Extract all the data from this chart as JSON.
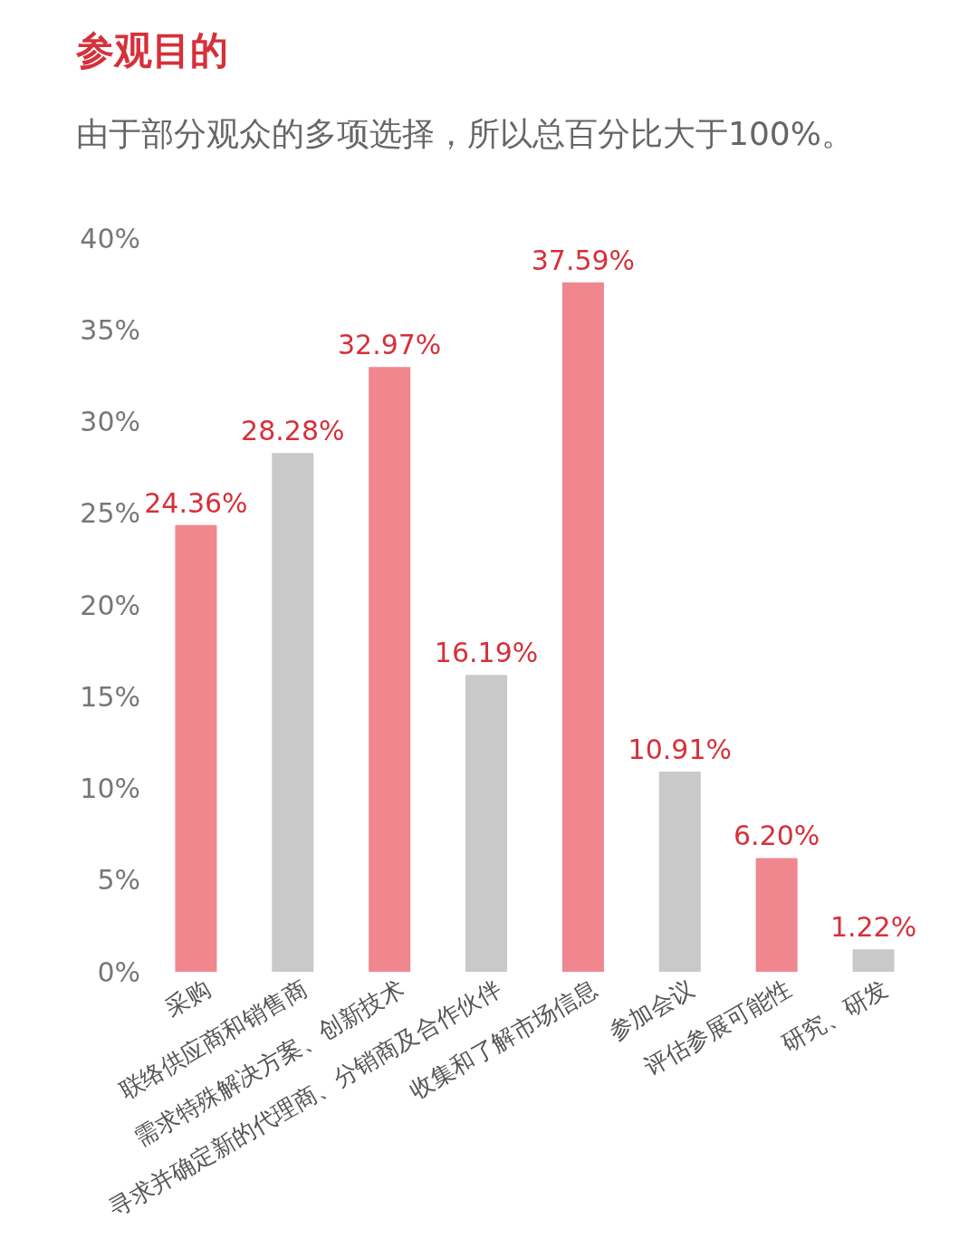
{
  "chart_data": {
    "type": "bar",
    "title": "参观目的",
    "subtitle": "由于部分观众的多项选择，所以总百分比大于100%。",
    "categories": [
      "采购",
      "联络供应商和销售商",
      "需求特殊解决方案、创新技术",
      "寻求并确定新的代理商、分销商及合作伙伴",
      "收集和了解市场信息",
      "参加会议",
      "评估参展可能性",
      "研究、研发"
    ],
    "values": [
      24.36,
      28.28,
      32.97,
      16.19,
      37.59,
      10.91,
      6.2,
      1.22
    ],
    "colors": [
      "#f0868e",
      "#c9c9c9",
      "#f0868e",
      "#c9c9c9",
      "#f0868e",
      "#c9c9c9",
      "#f0868e",
      "#c9c9c9"
    ],
    "value_labels": [
      "24.36%",
      "28.28%",
      "32.97%",
      "16.19%",
      "37.59%",
      "10.91%",
      "6.20%",
      "1.22%"
    ],
    "ylim": [
      0,
      40
    ],
    "yticks": [
      {
        "value": 0,
        "label": "0%"
      },
      {
        "value": 5,
        "label": "5%"
      },
      {
        "value": 10,
        "label": "10%"
      },
      {
        "value": 15,
        "label": "15%"
      },
      {
        "value": 20,
        "label": "20%"
      },
      {
        "value": 25,
        "label": "25%"
      },
      {
        "value": 30,
        "label": "30%"
      },
      {
        "value": 35,
        "label": "35%"
      },
      {
        "value": 40,
        "label": "40%"
      }
    ],
    "grid": false,
    "legend": false
  }
}
